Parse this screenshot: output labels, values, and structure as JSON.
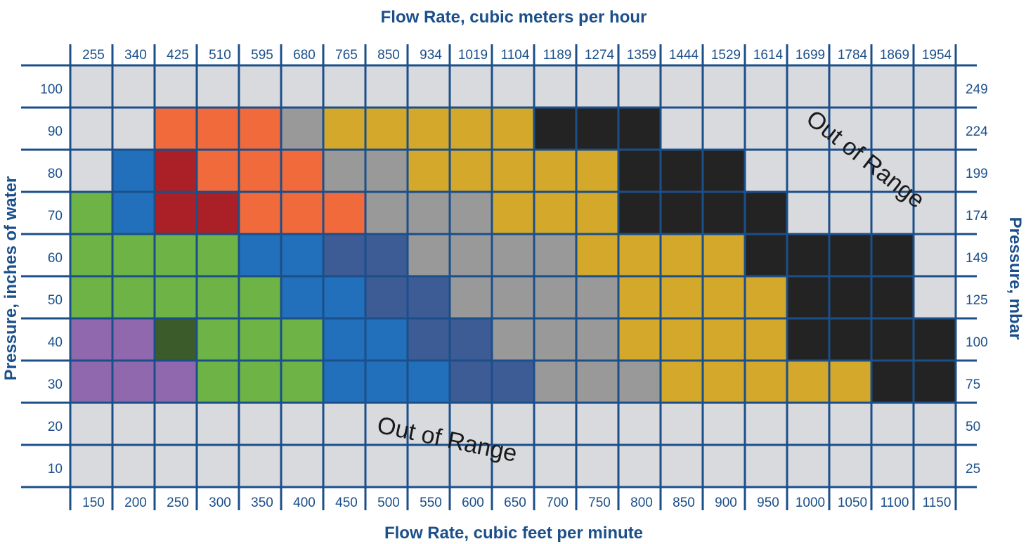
{
  "chart_data": {
    "type": "heatmap",
    "title": "",
    "x_top_label": "Flow Rate, cubic meters per hour",
    "x_bottom_label": "Flow Rate, cubic feet per minute",
    "y_left_label": "Pressure, inches of water",
    "y_right_label": "Pressure, mbar",
    "x_top_ticks": [
      "255",
      "340",
      "425",
      "510",
      "595",
      "680",
      "765",
      "850",
      "934",
      "1019",
      "1104",
      "1189",
      "1274",
      "1359",
      "1444",
      "1529",
      "1614",
      "1699",
      "1784",
      "1869",
      "1954"
    ],
    "x_bottom_ticks": [
      "150",
      "200",
      "250",
      "300",
      "350",
      "400",
      "450",
      "500",
      "550",
      "600",
      "650",
      "700",
      "750",
      "800",
      "850",
      "900",
      "950",
      "1000",
      "1050",
      "1100",
      "1150"
    ],
    "y_left_ticks": [
      "100",
      "90",
      "80",
      "70",
      "60",
      "50",
      "40",
      "30",
      "20",
      "10"
    ],
    "y_right_ticks": [
      "249",
      "224",
      "199",
      "174",
      "149",
      "125",
      "100",
      "75",
      "50",
      "25"
    ],
    "annotations": [
      {
        "text": "Out of Range",
        "region": "upper-right"
      },
      {
        "text": "Out of Range",
        "region": "lower-middle"
      }
    ],
    "colors": {
      "E": "#d8dadd",
      "O": "#f16a3c",
      "R": "#ab1f26",
      "g": "#999999",
      "Y": "#d3a82b",
      "K": "#232323",
      "B": "#2270bb",
      "N": "#3d5b95",
      "G": "#6db346",
      "D": "#3c5b2b",
      "P": "#8f68ad",
      "grid": "#1b4f8a"
    },
    "rows": [
      "EEEEEEEEEEEEEEEEEEEEE",
      "EEOOOgYYYYYKKKEEEEEEE",
      "EBROOOggYYYYYKKKEEEEE",
      "GBRROOOgggYYYKKKKEEEE",
      "GGGGBBNNggggYYYYKKKKE",
      "GGGGGBBNNggggYYYYKKKE",
      "PPDGGGBBNNgggYYYYKKKK",
      "PPPGGGBBBNNgggYYYYYKK",
      "EEEEEEEEEEEEEEEEEEEEE",
      "EEEEEEEEEEEEEEEEEEEEE"
    ]
  }
}
